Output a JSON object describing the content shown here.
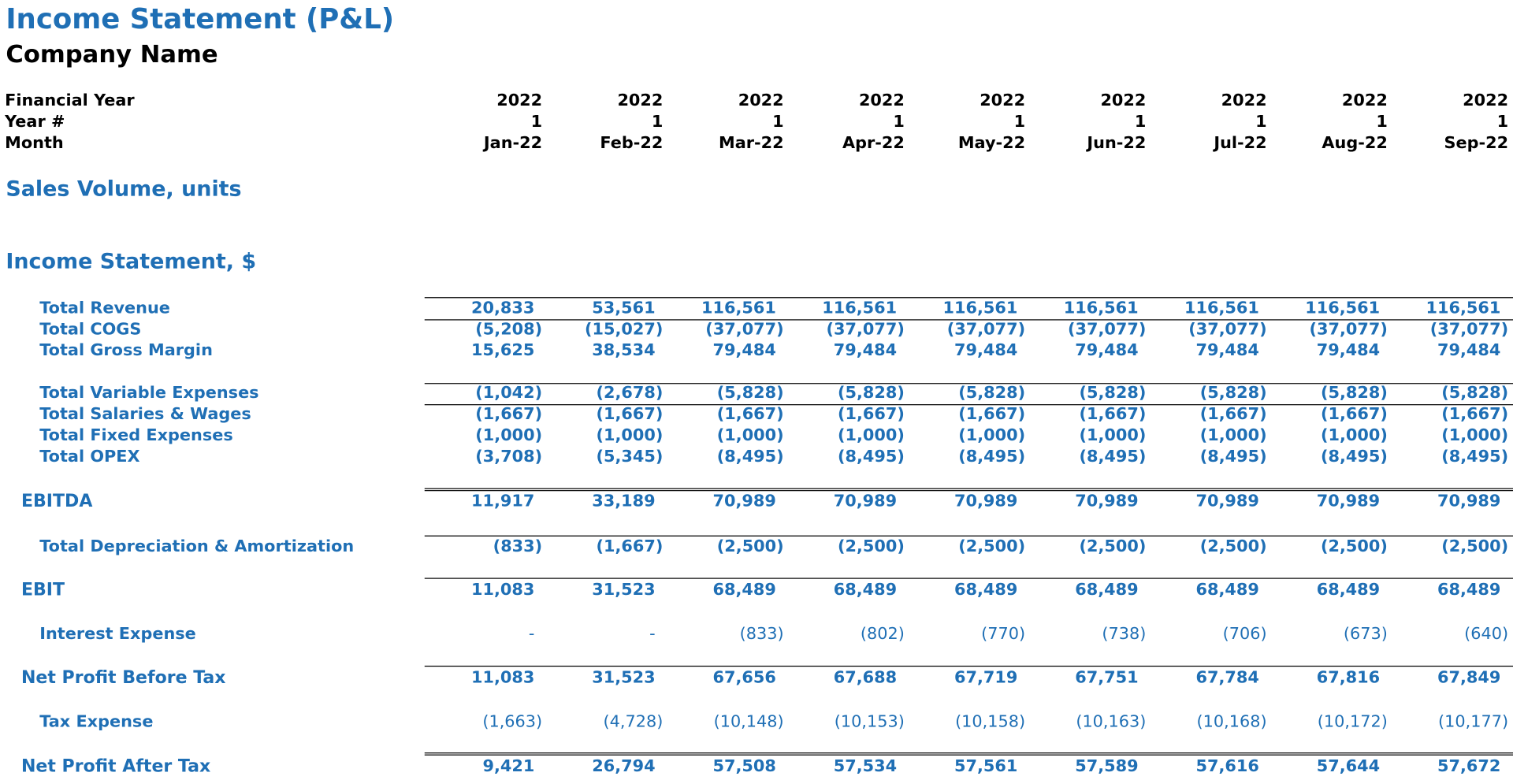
{
  "header": {
    "title": "Income Statement (P&L)",
    "company": "Company Name"
  },
  "timeline": {
    "rows": [
      {
        "label": "Financial Year",
        "values": [
          "2022",
          "2022",
          "2022",
          "2022",
          "2022",
          "2022",
          "2022",
          "2022",
          "2022"
        ]
      },
      {
        "label": "Year #",
        "values": [
          "1",
          "1",
          "1",
          "1",
          "1",
          "1",
          "1",
          "1",
          "1"
        ]
      },
      {
        "label": "Month",
        "values": [
          "Jan-22",
          "Feb-22",
          "Mar-22",
          "Apr-22",
          "May-22",
          "Jun-22",
          "Jul-22",
          "Aug-22",
          "Sep-22"
        ]
      }
    ]
  },
  "sections": [
    "Sales Volume, units",
    "Income Statement, $"
  ],
  "table": {
    "rows": [
      {
        "label": "Total Revenue",
        "values": [
          "20,833",
          "53,561",
          "116,561",
          "116,561",
          "116,561",
          "116,561",
          "116,561",
          "116,561",
          "116,561"
        ]
      },
      {
        "label": "Total COGS",
        "values": [
          "(5,208)",
          "(15,027)",
          "(37,077)",
          "(37,077)",
          "(37,077)",
          "(37,077)",
          "(37,077)",
          "(37,077)",
          "(37,077)"
        ]
      },
      {
        "label": "Total Gross Margin",
        "values": [
          "15,625",
          "38,534",
          "79,484",
          "79,484",
          "79,484",
          "79,484",
          "79,484",
          "79,484",
          "79,484"
        ]
      },
      {
        "label": "Total Variable Expenses",
        "values": [
          "(1,042)",
          "(2,678)",
          "(5,828)",
          "(5,828)",
          "(5,828)",
          "(5,828)",
          "(5,828)",
          "(5,828)",
          "(5,828)"
        ]
      },
      {
        "label": "Total Salaries & Wages",
        "values": [
          "(1,667)",
          "(1,667)",
          "(1,667)",
          "(1,667)",
          "(1,667)",
          "(1,667)",
          "(1,667)",
          "(1,667)",
          "(1,667)"
        ]
      },
      {
        "label": "Total Fixed Expenses",
        "values": [
          "(1,000)",
          "(1,000)",
          "(1,000)",
          "(1,000)",
          "(1,000)",
          "(1,000)",
          "(1,000)",
          "(1,000)",
          "(1,000)"
        ]
      },
      {
        "label": "Total OPEX",
        "values": [
          "(3,708)",
          "(5,345)",
          "(8,495)",
          "(8,495)",
          "(8,495)",
          "(8,495)",
          "(8,495)",
          "(8,495)",
          "(8,495)"
        ]
      },
      {
        "label": "EBITDA",
        "values": [
          "11,917",
          "33,189",
          "70,989",
          "70,989",
          "70,989",
          "70,989",
          "70,989",
          "70,989",
          "70,989"
        ]
      },
      {
        "label": "Total Depreciation & Amortization",
        "values": [
          "(833)",
          "(1,667)",
          "(2,500)",
          "(2,500)",
          "(2,500)",
          "(2,500)",
          "(2,500)",
          "(2,500)",
          "(2,500)"
        ]
      },
      {
        "label": "EBIT",
        "values": [
          "11,083",
          "31,523",
          "68,489",
          "68,489",
          "68,489",
          "68,489",
          "68,489",
          "68,489",
          "68,489"
        ]
      },
      {
        "label": "Interest Expense",
        "values": [
          "-",
          "-",
          "(833)",
          "(802)",
          "(770)",
          "(738)",
          "(706)",
          "(673)",
          "(640)"
        ]
      },
      {
        "label": "Net Profit Before Tax",
        "values": [
          "11,083",
          "31,523",
          "67,656",
          "67,688",
          "67,719",
          "67,751",
          "67,784",
          "67,816",
          "67,849"
        ]
      },
      {
        "label": "Tax Expense",
        "values": [
          "(1,663)",
          "(4,728)",
          "(10,148)",
          "(10,153)",
          "(10,158)",
          "(10,163)",
          "(10,168)",
          "(10,172)",
          "(10,177)"
        ]
      },
      {
        "label": "Net Profit After Tax",
        "values": [
          "9,421",
          "26,794",
          "57,508",
          "57,534",
          "57,561",
          "57,589",
          "57,616",
          "57,644",
          "57,672"
        ]
      }
    ]
  }
}
